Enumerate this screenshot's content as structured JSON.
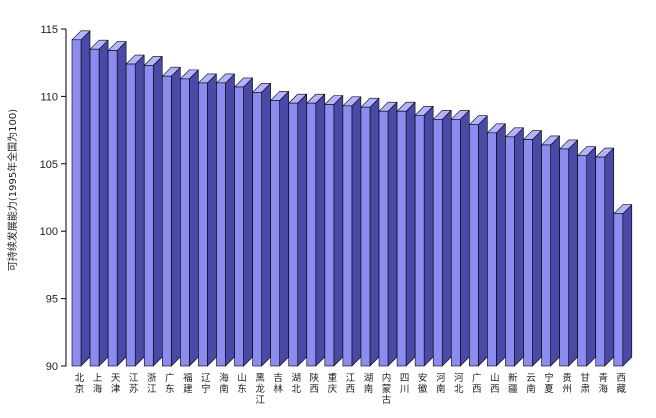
{
  "chart_data": {
    "type": "bar",
    "ylabel": "可持续发展能力(1995年全国为100)",
    "ylim": [
      90,
      115
    ],
    "yticks": [
      90,
      95,
      100,
      105,
      110,
      115
    ],
    "grid": false,
    "legend": "none",
    "categories": [
      "北京",
      "上海",
      "天津",
      "江苏",
      "浙江",
      "广东",
      "福建",
      "辽宁",
      "海南",
      "山东",
      "黑龙江",
      "吉林",
      "湖北",
      "陕西",
      "重庆",
      "江西",
      "湖南",
      "内蒙古",
      "四川",
      "安徽",
      "河南",
      "河北",
      "广西",
      "山西",
      "新疆",
      "云南",
      "宁夏",
      "贵州",
      "甘肃",
      "青海",
      "西藏"
    ],
    "values": [
      114.2,
      113.5,
      113.4,
      112.4,
      112.3,
      111.5,
      111.3,
      111.0,
      111.0,
      110.7,
      110.3,
      109.7,
      109.5,
      109.5,
      109.4,
      109.3,
      109.2,
      108.9,
      108.9,
      108.6,
      108.3,
      108.3,
      107.9,
      107.3,
      107.0,
      106.8,
      106.4,
      106.1,
      105.6,
      105.5,
      101.3
    ],
    "colors": {
      "bar_front": "#8c8cf0",
      "bar_side": "#4a4aa6",
      "bar_top": "#b3b3ff",
      "outline": "#000000",
      "axis": "#000000"
    }
  }
}
